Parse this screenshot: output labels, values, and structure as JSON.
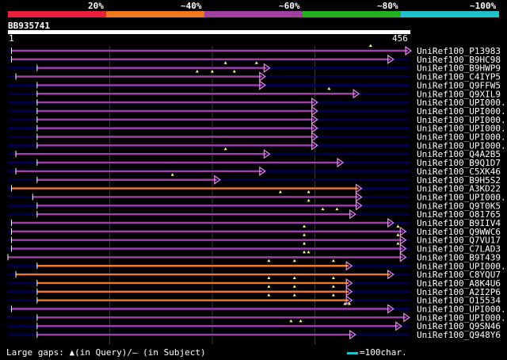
{
  "query": {
    "name": "BB935741",
    "start": "1",
    "end": "456"
  },
  "scale": {
    "labels": [
      "20%",
      "~40%",
      "~60%",
      "~80%",
      "~100%"
    ],
    "segments": [
      {
        "color": "#e8203c",
        "level": "20%"
      },
      {
        "color": "#ee7a1c",
        "level": "~40%"
      },
      {
        "color": "#a040a0",
        "level": "~60%"
      },
      {
        "color": "#22b022",
        "level": "~80%"
      },
      {
        "color": "#22c0c8",
        "level": "~100%"
      }
    ]
  },
  "colors": {
    "orange": "#ee7a1c",
    "purple": "#a040a0",
    "track": "#00004a",
    "grid": "#3a3a3a",
    "arrow": "#ee88ee",
    "tri": "#ffff88"
  },
  "hits": [
    {
      "name": "UniRef100_P13983",
      "start": 5,
      "end": 456,
      "color": "purple",
      "marks": [
        411
      ]
    },
    {
      "name": "UniRef100_B9HC98",
      "start": 5,
      "end": 436,
      "color": "purple",
      "marks": []
    },
    {
      "name": "UniRef100_B9HWP9",
      "start": 34,
      "end": 296,
      "color": "purple",
      "marks": [
        247,
        282
      ]
    },
    {
      "name": "UniRef100_C4IYP5",
      "start": 10,
      "end": 291,
      "color": "purple",
      "marks": [
        215,
        232,
        257
      ]
    },
    {
      "name": "UniRef100_Q9FFW5",
      "start": 34,
      "end": 291,
      "color": "purple",
      "marks": []
    },
    {
      "name": "UniRef100_Q9XIL9",
      "start": 34,
      "end": 397,
      "color": "purple",
      "marks": [
        364
      ]
    },
    {
      "name": "UniRef100_UPI000..",
      "start": 34,
      "end": 350,
      "color": "purple",
      "marks": []
    },
    {
      "name": "UniRef100_UPI000..",
      "start": 34,
      "end": 350,
      "color": "purple",
      "marks": []
    },
    {
      "name": "UniRef100_UPI000..",
      "start": 34,
      "end": 350,
      "color": "purple",
      "marks": []
    },
    {
      "name": "UniRef100_UPI000..",
      "start": 34,
      "end": 350,
      "color": "purple",
      "marks": []
    },
    {
      "name": "UniRef100_UPI000..",
      "start": 34,
      "end": 350,
      "color": "purple",
      "marks": []
    },
    {
      "name": "UniRef100_UPI000..",
      "start": 34,
      "end": 350,
      "color": "purple",
      "marks": []
    },
    {
      "name": "UniRef100_Q4A2B5",
      "start": 10,
      "end": 296,
      "color": "purple",
      "marks": [
        247
      ]
    },
    {
      "name": "UniRef100_B9Q1D7",
      "start": 34,
      "end": 379,
      "color": "purple",
      "marks": []
    },
    {
      "name": "UniRef100_C5XK46",
      "start": 10,
      "end": 291,
      "color": "purple",
      "marks": []
    },
    {
      "name": "UniRef100_B9H5S2",
      "start": 34,
      "end": 240,
      "color": "purple",
      "marks": [
        187
      ]
    },
    {
      "name": "UniRef100_A3KD22",
      "start": 5,
      "end": 400,
      "color": "orange",
      "marks": []
    },
    {
      "name": "UniRef100_UPI000..",
      "start": 29,
      "end": 400,
      "color": "purple",
      "marks": [
        309,
        341
      ]
    },
    {
      "name": "UniRef100_Q9T0K5",
      "start": 34,
      "end": 400,
      "color": "purple",
      "marks": [
        341
      ]
    },
    {
      "name": "UniRef100_O81765",
      "start": 34,
      "end": 393,
      "color": "purple",
      "marks": [
        357,
        373
      ]
    },
    {
      "name": "UniRef100_B9IIV4",
      "start": 5,
      "end": 436,
      "color": "purple",
      "marks": []
    },
    {
      "name": "UniRef100_Q9WWC6",
      "start": 5,
      "end": 450,
      "color": "purple",
      "marks": [
        336,
        442
      ]
    },
    {
      "name": "UniRef100_Q7VU17",
      "start": 5,
      "end": 450,
      "color": "purple",
      "marks": [
        336,
        442
      ]
    },
    {
      "name": "UniRef100_C7LAD3",
      "start": 5,
      "end": 450,
      "color": "purple",
      "marks": [
        336,
        442
      ]
    },
    {
      "name": "UniRef100_B9T439",
      "start": 1,
      "end": 450,
      "color": "purple",
      "marks": [
        336,
        341
      ]
    },
    {
      "name": "UniRef100_UPI000..",
      "start": 34,
      "end": 389,
      "color": "orange",
      "marks": [
        296,
        325,
        369
      ]
    },
    {
      "name": "UniRef100_C8YQU7",
      "start": 10,
      "end": 436,
      "color": "orange",
      "marks": []
    },
    {
      "name": "UniRef100_A8K4U6",
      "start": 34,
      "end": 389,
      "color": "orange",
      "marks": [
        296,
        325,
        369
      ]
    },
    {
      "name": "UniRef100_A2I2P6",
      "start": 34,
      "end": 389,
      "color": "orange",
      "marks": [
        296,
        325,
        369
      ]
    },
    {
      "name": "UniRef100_O15534",
      "start": 34,
      "end": 389,
      "color": "orange",
      "marks": [
        296,
        325,
        369
      ]
    },
    {
      "name": "UniRef100_UPI000..",
      "start": 5,
      "end": 436,
      "color": "purple",
      "marks": [
        382,
        387
      ]
    },
    {
      "name": "UniRef100_UPI000..",
      "start": 34,
      "end": 454,
      "color": "purple",
      "marks": []
    },
    {
      "name": "UniRef100_Q9SN46",
      "start": 34,
      "end": 445,
      "color": "purple",
      "marks": [
        321,
        332
      ]
    },
    {
      "name": "UniRef100_Q948Y6",
      "start": 34,
      "end": 393,
      "color": "purple",
      "marks": []
    }
  ],
  "legend": {
    "gaps": "Large gaps: ▲(in Query)/– (in Subject)",
    "key": "=100char."
  }
}
